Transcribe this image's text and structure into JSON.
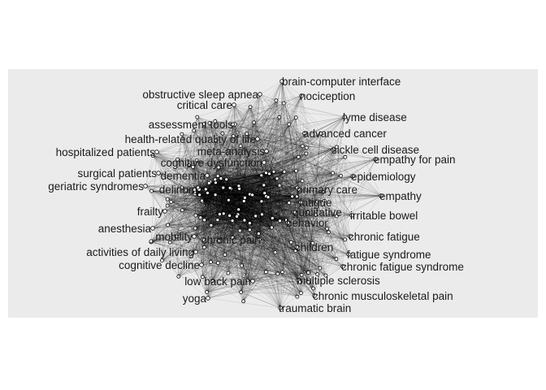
{
  "network": {
    "panel_background": "#ebebeb",
    "edge_color": "#000000",
    "node_fill": "#ffffff",
    "node_stroke": "#000000",
    "labels": [
      "brain-computer interface",
      "obstructive sleep apnea",
      "nociception",
      "critical care",
      "lyme disease",
      "assessment tools",
      "advanced cancer",
      "health-related quality of life",
      "sickle cell disease",
      "hospitalized patients",
      "meta-analysis",
      "empathy for pain",
      "cognitive dysfunction",
      "surgical patients",
      "dementia",
      "epidemiology",
      "geriatric syndromes",
      "primary care",
      "delirium",
      "empathy",
      "fatigue",
      "frailty",
      "qualitative",
      "irritable bowel",
      "behavior",
      "anesthesia",
      "mobility",
      "chronic pain",
      "chronic fatigue",
      "activities of daily living",
      "children",
      "fatigue syndrome",
      "cognitive decline",
      "chronic fatigue syndrome",
      "low back pain",
      "multiple sclerosis",
      "chronic musculoskeletal pain",
      "yoga",
      "traumatic brain"
    ]
  }
}
